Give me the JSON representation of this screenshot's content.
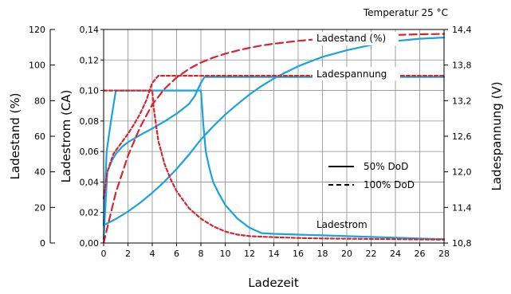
{
  "chart_data": {
    "type": "line",
    "annotation_top": "Temperatur 25 °C",
    "xlabel": "Ladezeit",
    "ylabel_outer": "Ladestand (%)",
    "ylabel_inner": "Ladestrom (CA)",
    "ylabel_right": "Ladespannung (V)",
    "xlim": [
      0,
      28
    ],
    "xticks": [
      "0",
      "2",
      "4",
      "6",
      "8",
      "10",
      "12",
      "14",
      "16",
      "18",
      "20",
      "22",
      "24",
      "26",
      "28"
    ],
    "soc_axis": {
      "ylim": [
        0,
        120
      ],
      "ticks": [
        "0",
        "20",
        "40",
        "60",
        "80",
        "100",
        "120"
      ]
    },
    "current_axis": {
      "ylim": [
        0,
        0.14
      ],
      "ticks": [
        "0,00",
        "0,02",
        "0,04",
        "0,06",
        "0,08",
        "0,10",
        "0,12",
        "0,14"
      ]
    },
    "voltage_axis": {
      "ylim": [
        10.8,
        14.4
      ],
      "ticks": [
        "10,8",
        "11,4",
        "12,0",
        "12,6",
        "13,2",
        "13,8",
        "14,4"
      ]
    },
    "curve_labels": {
      "soc": "Ladestand (%)",
      "voltage": "Ladespannung",
      "current": "Ladestrom"
    },
    "legend": [
      {
        "label": "50% DoD",
        "style": "solid"
      },
      {
        "label": "100% DoD",
        "style": "dashed"
      }
    ],
    "colors": {
      "dod50": "#1aa3dc",
      "dod100": "#d9232d",
      "frame": "#000000"
    },
    "series": [
      {
        "group": "50% DoD",
        "quantity": "soc",
        "axis": "soc",
        "x": [
          0,
          1,
          2,
          3,
          4,
          5,
          6,
          7,
          8,
          9,
          10,
          11,
          12,
          13,
          14,
          15,
          16,
          18,
          20,
          22,
          24,
          26,
          28
        ],
        "y": [
          10,
          13.5,
          17.7,
          22.6,
          28.2,
          34.5,
          41.6,
          49.5,
          58.2,
          65.5,
          72.2,
          78.0,
          83.5,
          88.3,
          92.4,
          96.0,
          99.3,
          104.6,
          108.3,
          111.3,
          113.5,
          114.8,
          115.5
        ]
      },
      {
        "group": "50% DoD",
        "quantity": "voltage",
        "axis": "voltage",
        "x": [
          0,
          0.3,
          0.7,
          1,
          1.5,
          2,
          3,
          4,
          5,
          6,
          7,
          7.5,
          8,
          8.3,
          9,
          10,
          14,
          18,
          22,
          26,
          28
        ],
        "y": [
          10.86,
          12.0,
          12.2,
          12.3,
          12.42,
          12.5,
          12.62,
          12.73,
          12.85,
          12.98,
          13.14,
          13.28,
          13.5,
          13.6,
          13.6,
          13.6,
          13.6,
          13.6,
          13.6,
          13.6,
          13.6
        ]
      },
      {
        "group": "50% DoD",
        "quantity": "current",
        "axis": "current",
        "x": [
          0,
          0.25,
          0.6,
          1,
          4,
          6,
          8,
          8.1,
          8.2,
          8.4,
          8.7,
          9,
          9.5,
          10,
          11,
          12,
          13,
          14,
          16,
          18,
          20,
          22,
          24,
          26,
          28
        ],
        "y": [
          0.012,
          0.06,
          0.08,
          0.1,
          0.1,
          0.1,
          0.1,
          0.09,
          0.078,
          0.06,
          0.049,
          0.04,
          0.032,
          0.025,
          0.016,
          0.01,
          0.0065,
          0.006,
          0.0055,
          0.005,
          0.0045,
          0.004,
          0.0035,
          0.003,
          0.0025
        ]
      },
      {
        "group": "100% DoD",
        "quantity": "soc",
        "axis": "soc",
        "x": [
          0,
          1,
          2,
          3,
          4,
          5,
          6,
          7,
          8,
          9,
          10,
          11,
          12,
          13,
          14,
          16,
          18,
          20,
          22,
          24,
          26,
          28
        ],
        "y": [
          0,
          28.4,
          49.0,
          65.1,
          77.8,
          86.6,
          93.0,
          97.8,
          101.4,
          104.2,
          106.4,
          108.2,
          109.7,
          111.0,
          112.0,
          113.6,
          114.8,
          115.7,
          116.4,
          116.9,
          117.3,
          117.5
        ]
      },
      {
        "group": "100% DoD",
        "quantity": "voltage",
        "axis": "voltage",
        "x": [
          0,
          0.3,
          0.8,
          1.5,
          2,
          2.5,
          3,
          3.5,
          4,
          4.5,
          6,
          10,
          14,
          18,
          22,
          26,
          28
        ],
        "y": [
          11.55,
          12.0,
          12.3,
          12.5,
          12.64,
          12.8,
          12.98,
          13.2,
          13.5,
          13.62,
          13.62,
          13.62,
          13.62,
          13.62,
          13.62,
          13.62,
          13.62
        ]
      },
      {
        "group": "100% DoD",
        "quantity": "current",
        "axis": "current",
        "x": [
          0,
          4,
          4.1,
          4.3,
          4.5,
          5,
          5.5,
          6,
          7,
          8,
          9,
          10,
          11,
          12,
          14,
          16,
          18,
          20,
          24,
          28
        ],
        "y": [
          0.1,
          0.1,
          0.09,
          0.078,
          0.067,
          0.052,
          0.042,
          0.034,
          0.023,
          0.016,
          0.011,
          0.0075,
          0.0055,
          0.0045,
          0.0038,
          0.0033,
          0.003,
          0.0028,
          0.0025,
          0.0022
        ]
      }
    ]
  }
}
